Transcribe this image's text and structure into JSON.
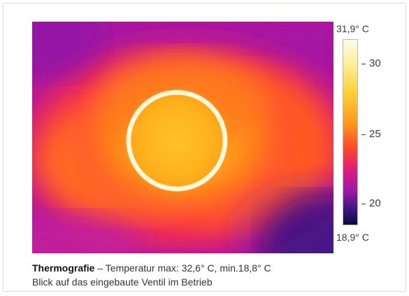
{
  "scale": {
    "max_label": "31,9° C",
    "min_label": "18,9° C",
    "ticks": [
      "30",
      "25",
      "20"
    ]
  },
  "caption": {
    "title": "Thermografie",
    "separator": " – ",
    "line1_text": "Temperatur max: 32,6° C, min.18,8° C",
    "line2_text": "Blick auf das eingebaute Ventil im Betrieb"
  },
  "colors": {
    "hot": "#fff6c8",
    "warm": "#ffb21a",
    "mid": "#ff5a1a",
    "magenta": "#e0208a",
    "cool": "#8a1aa8",
    "cold": "#1e1070"
  }
}
